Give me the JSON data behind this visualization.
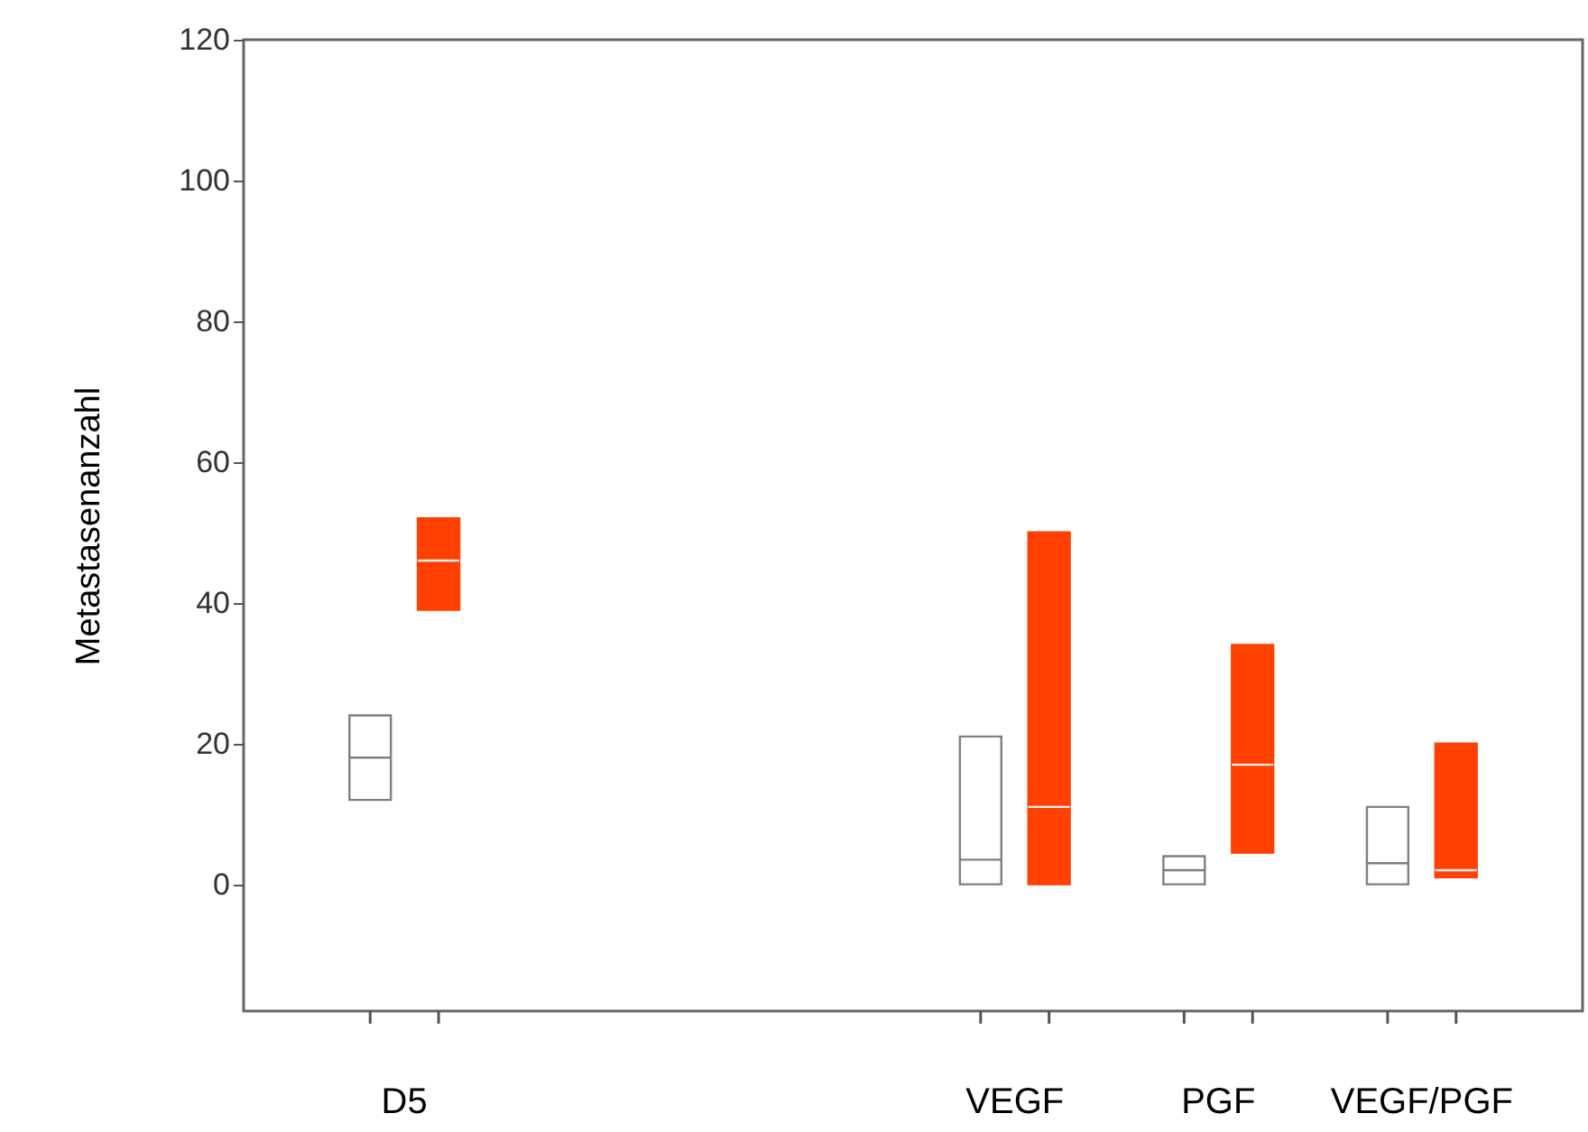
{
  "chart_data": {
    "type": "box",
    "ylabel": "Metastasenanzahl",
    "categories": [
      "D5",
      null,
      null,
      "VEGF",
      "PGF",
      "VEGF/PGF"
    ],
    "ylim": [
      -18,
      120
    ],
    "yticks": [
      0,
      20,
      40,
      60,
      80,
      100,
      120
    ],
    "grid": false,
    "series": [
      {
        "color": "#ffffff",
        "boxes": [
          {
            "low": 12,
            "q1": 12,
            "median": 18,
            "q3": 24,
            "high": 24
          },
          null,
          null,
          {
            "low": 0,
            "q1": 0,
            "median": 3.5,
            "q3": 21,
            "high": 21
          },
          {
            "low": 0,
            "q1": 0,
            "median": 2,
            "q3": 4,
            "high": 4
          },
          {
            "low": 0,
            "q1": 0,
            "median": 3,
            "q3": 11,
            "high": 11
          }
        ]
      },
      {
        "color": "#ff4000",
        "boxes": [
          {
            "low": 39,
            "q1": 39,
            "median": 46,
            "q3": 52,
            "high": 52
          },
          null,
          null,
          {
            "low": 0,
            "q1": 0,
            "median": 11,
            "q3": 50,
            "high": 50
          },
          {
            "low": 4.5,
            "q1": 4.5,
            "median": 17,
            "q3": 34,
            "high": 34
          },
          {
            "low": 1,
            "q1": 1,
            "median": 2,
            "q3": 20,
            "high": 20
          }
        ]
      }
    ]
  }
}
